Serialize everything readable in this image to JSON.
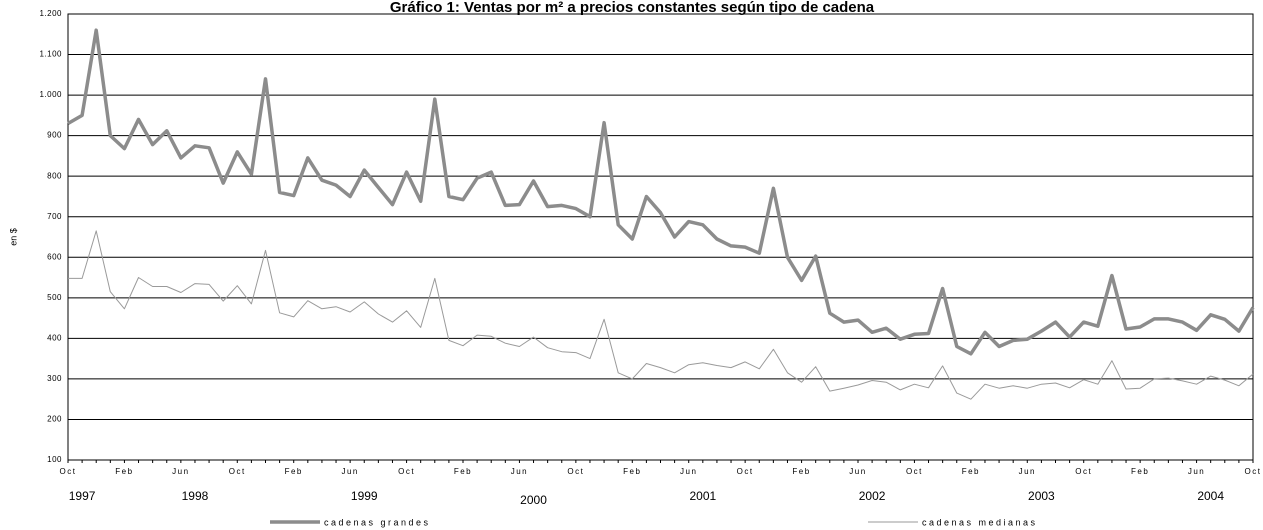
{
  "chart_data": {
    "type": "line",
    "title": "Gráfico 1: Ventas por m² a precios constantes según tipo de cadena",
    "y_label": "en $",
    "categories": [
      "Oct",
      null,
      null,
      null,
      "Feb",
      null,
      null,
      null,
      "Jun",
      null,
      null,
      null,
      "Oct",
      null,
      null,
      null,
      "Feb",
      null,
      null,
      null,
      "Jun",
      null,
      null,
      null,
      "Oct",
      null,
      null,
      null,
      "Feb",
      null,
      null,
      null,
      "Jun",
      null,
      null,
      null,
      "Oct",
      null,
      null,
      null,
      "Feb",
      null,
      null,
      null,
      "Jun",
      null,
      null,
      null,
      "Oct",
      null,
      null,
      null,
      "Feb",
      null,
      null,
      null,
      "Jun",
      null,
      null,
      null,
      "Oct",
      null,
      null,
      null,
      "Feb",
      null,
      null,
      null,
      "Jun",
      null,
      null,
      null,
      "Oct",
      null,
      null,
      null,
      "Feb",
      null,
      null,
      null,
      "Jun",
      null,
      null,
      null,
      "Oct"
    ],
    "year_labels": [
      "1997",
      "1998",
      "1999",
      "2000",
      "2001",
      "2002",
      "2003",
      "2004"
    ],
    "series": [
      {
        "name": "cadenas grandes",
        "color": "#8c8c8c",
        "values": [
          930,
          950,
          1160,
          900,
          868,
          940,
          878,
          912,
          845,
          875,
          870,
          783,
          860,
          805,
          1040,
          760,
          752,
          845,
          790,
          778,
          750,
          815,
          772,
          730,
          810,
          738,
          990,
          750,
          742,
          795,
          810,
          728,
          730,
          788,
          725,
          728,
          720,
          700,
          932,
          680,
          645,
          750,
          710,
          650,
          688,
          680,
          645,
          628,
          625,
          610,
          770,
          600,
          543,
          603,
          462,
          440,
          445,
          415,
          425,
          398,
          410,
          412,
          523,
          380,
          362,
          415,
          380,
          395,
          398,
          418,
          440,
          403,
          440,
          430,
          555,
          423,
          428,
          448,
          448,
          440,
          420,
          458,
          447,
          418,
          476
        ]
      },
      {
        "name": "cadenas medianas",
        "color": "#9a9a9a",
        "values": [
          548,
          548,
          665,
          515,
          473,
          550,
          528,
          528,
          513,
          535,
          533,
          492,
          530,
          485,
          617,
          463,
          453,
          493,
          473,
          478,
          465,
          490,
          460,
          440,
          468,
          427,
          548,
          395,
          382,
          408,
          405,
          388,
          380,
          403,
          377,
          367,
          365,
          350,
          447,
          315,
          300,
          338,
          328,
          315,
          335,
          340,
          333,
          328,
          342,
          325,
          373,
          315,
          292,
          330,
          270,
          277,
          285,
          296,
          292,
          273,
          287,
          278,
          332,
          265,
          250,
          287,
          277,
          283,
          277,
          287,
          290,
          278,
          298,
          287,
          345,
          275,
          277,
          300,
          302,
          295,
          287,
          307,
          297,
          283,
          312
        ]
      }
    ],
    "ylim": [
      100,
      1200
    ],
    "yticks": [
      100,
      200,
      300,
      400,
      500,
      600,
      700,
      800,
      900,
      {
        "value": 1000,
        "label": "1.000"
      },
      {
        "value": 1100,
        "label": "1.100"
      },
      {
        "value": 1200,
        "label": "1.200"
      }
    ],
    "grid": true
  }
}
